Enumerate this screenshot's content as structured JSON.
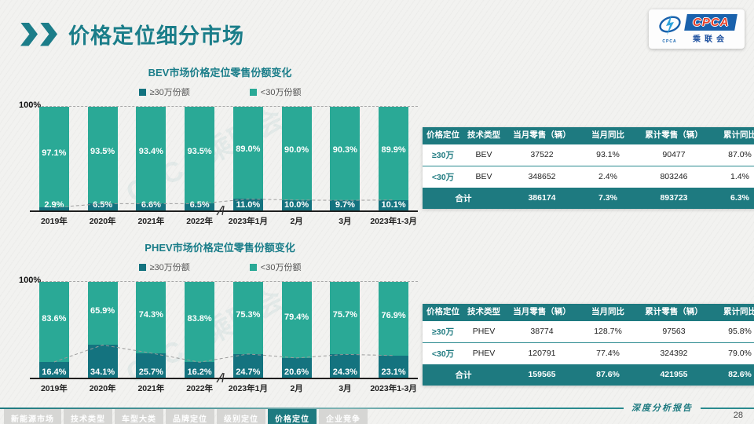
{
  "page": {
    "title": "价格定位细分市场"
  },
  "logo": {
    "emblem_caption": "CPCA",
    "name_en": "CPCA",
    "name_cn": "乘联会"
  },
  "watermark": {
    "text": "CPCA 乘联会"
  },
  "chart_data": [
    {
      "type": "bar",
      "stacked_percent": true,
      "title": "BEV市场价格定位零售份额变化",
      "y_top_tick": "100%",
      "ylim": [
        0,
        100
      ],
      "unit": "%",
      "legend_position": "top",
      "axis_break_between": [
        "2022年",
        "2023年1月"
      ],
      "categories": [
        "2019年",
        "2020年",
        "2021年",
        "2022年",
        "2023年1月",
        "2月",
        "3月",
        "2023年1-3月"
      ],
      "series": [
        {
          "name": "≥30万份额",
          "color": "#14737f",
          "position": "bottom",
          "values": [
            2.9,
            6.5,
            6.6,
            6.5,
            11.0,
            10.0,
            9.7,
            10.1
          ]
        },
        {
          "name": "<30万份额",
          "color": "#2aa996",
          "position": "top",
          "values": [
            97.1,
            93.5,
            93.4,
            93.5,
            89.0,
            90.0,
            90.3,
            89.9
          ]
        }
      ]
    },
    {
      "type": "table",
      "columns": [
        "价格定位",
        "技术类型",
        "当月零售（辆）",
        "当月同比",
        "累计零售（辆）",
        "累计同比"
      ],
      "rows": [
        [
          "≥30万",
          "BEV",
          "37522",
          "93.1%",
          "90477",
          "87.0%"
        ],
        [
          "<30万",
          "BEV",
          "348652",
          "2.4%",
          "803246",
          "1.4%"
        ]
      ],
      "total_row": [
        "合计",
        "386174",
        "7.3%",
        "893723",
        "6.3%"
      ]
    },
    {
      "type": "bar",
      "stacked_percent": true,
      "title": "PHEV市场价格定位零售份额变化",
      "y_top_tick": "100%",
      "ylim": [
        0,
        100
      ],
      "unit": "%",
      "legend_position": "top",
      "axis_break_between": [
        "2022年",
        "2023年1月"
      ],
      "categories": [
        "2019年",
        "2020年",
        "2021年",
        "2022年",
        "2023年1月",
        "2月",
        "3月",
        "2023年1-3月"
      ],
      "series": [
        {
          "name": "≥30万份额",
          "color": "#14737f",
          "position": "bottom",
          "values": [
            16.4,
            34.1,
            25.7,
            16.2,
            24.7,
            20.6,
            24.3,
            23.1
          ]
        },
        {
          "name": "<30万份额",
          "color": "#2aa996",
          "position": "top",
          "values": [
            83.6,
            65.9,
            74.3,
            83.8,
            75.3,
            79.4,
            75.7,
            76.9
          ]
        }
      ]
    },
    {
      "type": "table",
      "columns": [
        "价格定位",
        "技术类型",
        "当月零售（辆）",
        "当月同比",
        "累计零售（辆）",
        "累计同比"
      ],
      "rows": [
        [
          "≥30万",
          "PHEV",
          "38774",
          "128.7%",
          "97563",
          "95.8%"
        ],
        [
          "<30万",
          "PHEV",
          "120791",
          "77.4%",
          "324392",
          "79.0%"
        ]
      ],
      "total_row": [
        "合计",
        "159565",
        "87.6%",
        "421955",
        "82.6%"
      ]
    }
  ],
  "footer": {
    "tabs": [
      {
        "label": "新能源市场",
        "active": false
      },
      {
        "label": "技术类型",
        "active": false
      },
      {
        "label": "车型大类",
        "active": false
      },
      {
        "label": "品牌定位",
        "active": false
      },
      {
        "label": "级别定位",
        "active": false
      },
      {
        "label": "价格定位",
        "active": true
      },
      {
        "label": "企业竞争",
        "active": false
      }
    ],
    "report_label": "深度分析报告",
    "page_number": "28"
  }
}
